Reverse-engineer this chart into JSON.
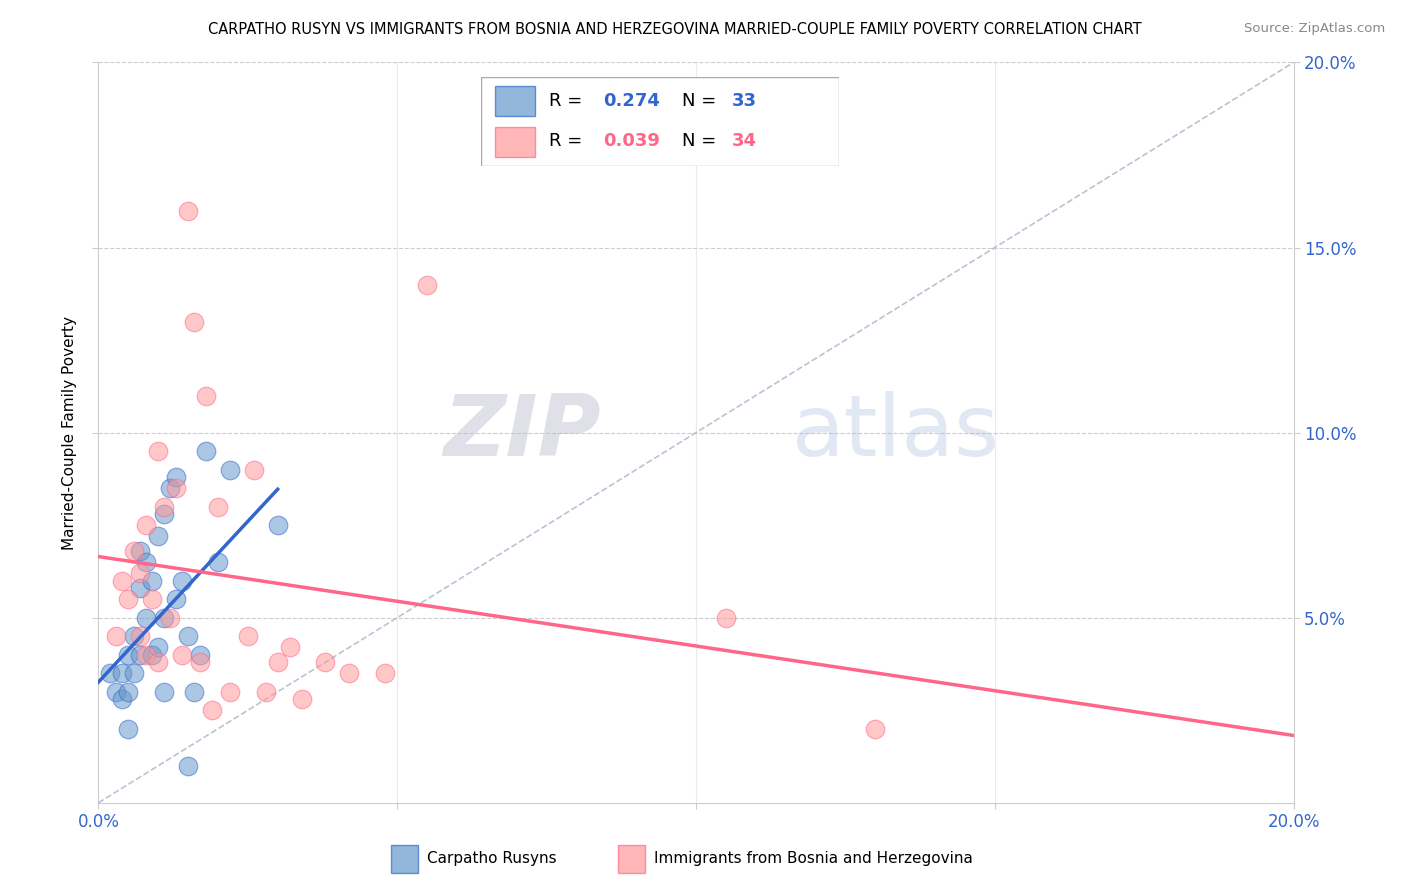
{
  "title": "CARPATHO RUSYN VS IMMIGRANTS FROM BOSNIA AND HERZEGOVINA MARRIED-COUPLE FAMILY POVERTY CORRELATION CHART",
  "source": "Source: ZipAtlas.com",
  "ylabel": "Married-Couple Family Poverty",
  "xlim": [
    0.0,
    0.2
  ],
  "ylim": [
    0.0,
    0.2
  ],
  "xticks": [
    0.0,
    0.05,
    0.1,
    0.15,
    0.2
  ],
  "yticks": [
    0.05,
    0.1,
    0.15,
    0.2
  ],
  "right_yticklabels": [
    "5.0%",
    "10.0%",
    "15.0%",
    "20.0%"
  ],
  "blue_R": 0.274,
  "blue_N": 33,
  "pink_R": 0.039,
  "pink_N": 34,
  "blue_color": "#6699CC",
  "pink_color": "#FF9999",
  "blue_line_color": "#3366CC",
  "pink_line_color": "#FF6688",
  "diag_color": "#aabbcc",
  "watermark_zip": "ZIP",
  "watermark_atlas": "atlas",
  "blue_scatter_x": [
    0.002,
    0.003,
    0.004,
    0.004,
    0.005,
    0.005,
    0.005,
    0.006,
    0.006,
    0.007,
    0.007,
    0.007,
    0.008,
    0.008,
    0.009,
    0.009,
    0.01,
    0.01,
    0.011,
    0.011,
    0.011,
    0.012,
    0.013,
    0.013,
    0.014,
    0.015,
    0.015,
    0.016,
    0.017,
    0.018,
    0.02,
    0.022,
    0.03
  ],
  "blue_scatter_y": [
    0.035,
    0.03,
    0.028,
    0.035,
    0.02,
    0.03,
    0.04,
    0.035,
    0.045,
    0.04,
    0.058,
    0.068,
    0.05,
    0.065,
    0.04,
    0.06,
    0.042,
    0.072,
    0.03,
    0.05,
    0.078,
    0.085,
    0.055,
    0.088,
    0.06,
    0.01,
    0.045,
    0.03,
    0.04,
    0.095,
    0.065,
    0.09,
    0.075
  ],
  "pink_scatter_x": [
    0.003,
    0.004,
    0.005,
    0.006,
    0.007,
    0.007,
    0.008,
    0.008,
    0.009,
    0.01,
    0.01,
    0.011,
    0.012,
    0.013,
    0.014,
    0.015,
    0.016,
    0.017,
    0.018,
    0.019,
    0.02,
    0.022,
    0.025,
    0.026,
    0.028,
    0.03,
    0.032,
    0.034,
    0.038,
    0.042,
    0.048,
    0.055,
    0.105,
    0.13
  ],
  "pink_scatter_y": [
    0.045,
    0.06,
    0.055,
    0.068,
    0.045,
    0.062,
    0.04,
    0.075,
    0.055,
    0.095,
    0.038,
    0.08,
    0.05,
    0.085,
    0.04,
    0.16,
    0.13,
    0.038,
    0.11,
    0.025,
    0.08,
    0.03,
    0.045,
    0.09,
    0.03,
    0.038,
    0.042,
    0.028,
    0.038,
    0.035,
    0.035,
    0.14,
    0.05,
    0.02
  ],
  "blue_line_x0": 0.0,
  "blue_line_x1": 0.03,
  "pink_line_x0": 0.0,
  "pink_line_x1": 0.2
}
